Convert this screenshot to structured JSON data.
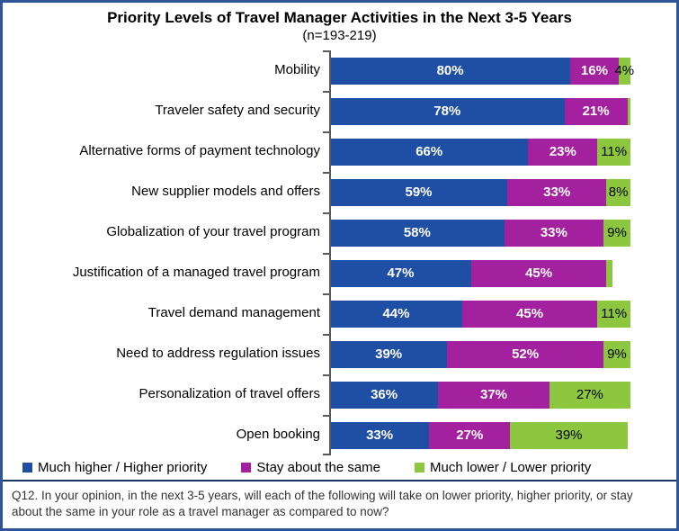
{
  "title": "Priority Levels of Travel Manager Activities in the Next 3-5 Years",
  "subtitle": "(n=193-219)",
  "chart_data": {
    "type": "bar",
    "orientation": "horizontal",
    "stacked": true,
    "xlim": [
      0,
      100
    ],
    "grid": false,
    "legend_position": "bottom",
    "series": [
      {
        "name": "Much higher / Higher priority",
        "color": "#1F4FA5",
        "label_color": "#FFFFFF"
      },
      {
        "name": "Stay about the same",
        "color": "#A3209F",
        "label_color": "#FFFFFF"
      },
      {
        "name": "Much lower / Lower priority",
        "color": "#8DC63F",
        "label_color": "#000000"
      }
    ],
    "rows": [
      {
        "category": "Mobility",
        "values": [
          80,
          16,
          4
        ],
        "labels": [
          "80%",
          "16%",
          "4%"
        ]
      },
      {
        "category": "Traveler safety and security",
        "values": [
          78,
          21,
          1
        ],
        "labels": [
          "78%",
          "21%",
          ""
        ]
      },
      {
        "category": "Alternative forms of payment technology",
        "values": [
          66,
          23,
          11
        ],
        "labels": [
          "66%",
          "23%",
          "11%"
        ]
      },
      {
        "category": "New supplier models and offers",
        "values": [
          59,
          33,
          8
        ],
        "labels": [
          "59%",
          "33%",
          "8%"
        ]
      },
      {
        "category": "Globalization of your travel program",
        "values": [
          58,
          33,
          9
        ],
        "labels": [
          "58%",
          "33%",
          "9%"
        ]
      },
      {
        "category": "Justification of a managed travel program",
        "values": [
          47,
          45,
          2
        ],
        "labels": [
          "47%",
          "45%",
          ""
        ]
      },
      {
        "category": "Travel demand management",
        "values": [
          44,
          45,
          11
        ],
        "labels": [
          "44%",
          "45%",
          "11%"
        ]
      },
      {
        "category": "Need to address regulation issues",
        "values": [
          39,
          52,
          9
        ],
        "labels": [
          "39%",
          "52%",
          "9%"
        ]
      },
      {
        "category": "Personalization of travel offers",
        "values": [
          36,
          37,
          27
        ],
        "labels": [
          "36%",
          "37%",
          "27%"
        ]
      },
      {
        "category": "Open booking",
        "values": [
          33,
          27,
          39
        ],
        "labels": [
          "33%",
          "27%",
          "39%"
        ]
      }
    ]
  },
  "legend": {
    "items": [
      "Much higher / Higher priority",
      "Stay about the same",
      "Much lower / Lower priority"
    ]
  },
  "footnote": "Q12. In your opinion, in the next 3-5 years, will each of the following will take on lower priority, higher priority, or stay about the same in your role as a travel manager as compared to now?",
  "colors": {
    "frame_border": "#2F5597",
    "frame_outer_edge": "#A9C6E8",
    "axis": "#595959",
    "divider": "#17375E",
    "footnote_text": "#333333"
  }
}
